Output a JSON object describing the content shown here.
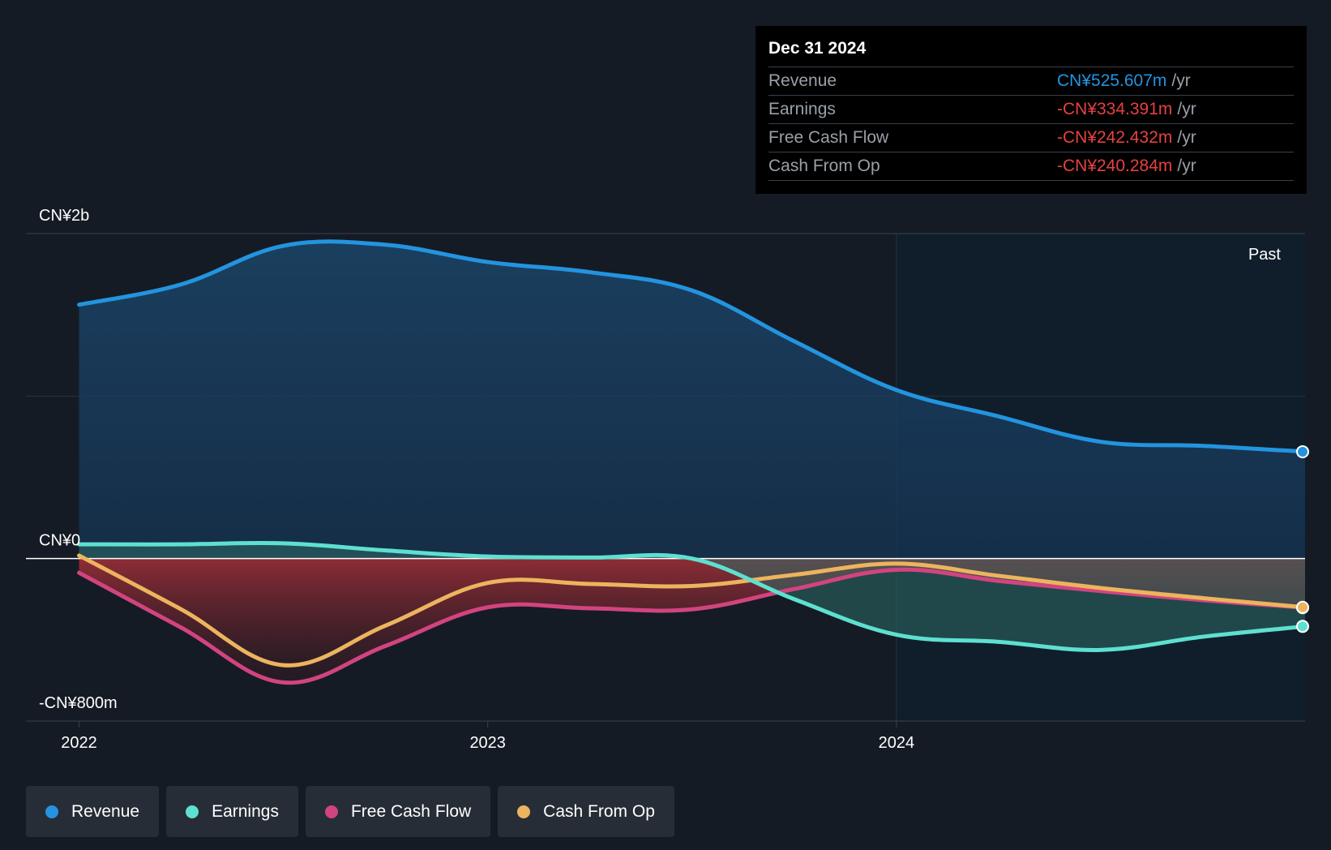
{
  "colors": {
    "background": "#151b24",
    "revenue": "#2394df",
    "earnings": "#5ee0d0",
    "free_cash_flow": "#d2447f",
    "cash_from_op": "#ecb45e",
    "negative_value": "#e64141"
  },
  "tooltip": {
    "date": "Dec 31 2024",
    "rows": [
      {
        "label": "Revenue",
        "value": "CN¥525.607m",
        "unit": "/yr"
      },
      {
        "label": "Earnings",
        "value": "-CN¥334.391m",
        "unit": "/yr"
      },
      {
        "label": "Free Cash Flow",
        "value": "-CN¥242.432m",
        "unit": "/yr"
      },
      {
        "label": "Cash From Op",
        "value": "-CN¥240.284m",
        "unit": "/yr"
      }
    ]
  },
  "legend": [
    {
      "label": "Revenue",
      "color": "#2394df"
    },
    {
      "label": "Earnings",
      "color": "#5ee0d0"
    },
    {
      "label": "Free Cash Flow",
      "color": "#d2447f"
    },
    {
      "label": "Cash From Op",
      "color": "#ecb45e"
    }
  ],
  "chart_data": {
    "type": "area",
    "past_label": "Past",
    "y_tick_labels": [
      {
        "value": 1600,
        "label": "CN¥2b"
      },
      {
        "value": 0,
        "label": "CN¥0"
      },
      {
        "value": -800,
        "label": "-CN¥800m"
      }
    ],
    "x_tick_labels": [
      {
        "value": 2022.0,
        "label": "2022"
      },
      {
        "value": 2023.0,
        "label": "2023"
      },
      {
        "value": 2024.0,
        "label": "2024"
      }
    ],
    "xlim": [
      2021.87,
      2025.0
    ],
    "ylim": [
      -800,
      1600
    ],
    "past_region_start": 2024.0,
    "series": [
      {
        "name": "Revenue",
        "x": [
          2022.0,
          2022.25,
          2022.5,
          2022.75,
          2023.0,
          2023.25,
          2023.5,
          2023.75,
          2024.0,
          2024.25,
          2024.5,
          2024.75,
          2025.0
        ],
        "y": [
          1250,
          1350,
          1540,
          1545,
          1460,
          1410,
          1320,
          1070,
          830,
          700,
          575,
          555,
          526
        ]
      },
      {
        "name": "Earnings",
        "x": [
          2022.0,
          2022.25,
          2022.5,
          2022.75,
          2023.0,
          2023.25,
          2023.5,
          2023.75,
          2024.0,
          2024.25,
          2024.5,
          2024.75,
          2025.0
        ],
        "y": [
          70,
          70,
          75,
          40,
          10,
          5,
          0,
          -200,
          -375,
          -410,
          -450,
          -385,
          -334
        ]
      },
      {
        "name": "Free Cash Flow",
        "x": [
          2022.0,
          2022.25,
          2022.5,
          2022.75,
          2023.0,
          2023.25,
          2023.5,
          2023.75,
          2024.0,
          2024.25,
          2024.5,
          2024.75,
          2025.0
        ],
        "y": [
          -70,
          -340,
          -610,
          -430,
          -240,
          -245,
          -250,
          -150,
          -55,
          -110,
          -160,
          -205,
          -242
        ]
      },
      {
        "name": "Cash From Op",
        "x": [
          2022.0,
          2022.25,
          2022.5,
          2022.75,
          2023.0,
          2023.25,
          2023.5,
          2023.75,
          2024.0,
          2024.25,
          2024.5,
          2024.75,
          2025.0
        ],
        "y": [
          15,
          -250,
          -525,
          -330,
          -120,
          -125,
          -135,
          -80,
          -25,
          -85,
          -145,
          -195,
          -240
        ]
      }
    ]
  }
}
